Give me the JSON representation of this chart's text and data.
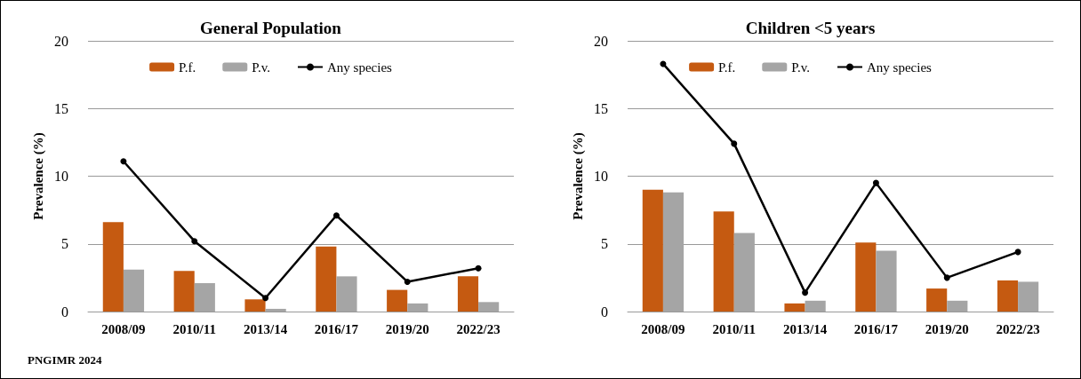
{
  "chart_data": [
    {
      "type": "bar",
      "title": "General Population",
      "ylabel": "Prevalence (%)",
      "categories": [
        "2008/09",
        "2010/11",
        "2013/14",
        "2016/17",
        "2019/20",
        "2022/23"
      ],
      "series": [
        {
          "name": "P.f.",
          "color": "#c55a11",
          "values": [
            6.6,
            3.0,
            0.9,
            4.8,
            1.6,
            2.6
          ]
        },
        {
          "name": "P.v.",
          "color": "#a5a5a5",
          "values": [
            3.1,
            2.1,
            0.2,
            2.6,
            0.6,
            0.7
          ]
        },
        {
          "name": "Any species",
          "type": "line",
          "color": "#000000",
          "values": [
            11.1,
            5.2,
            1.0,
            7.1,
            2.2,
            3.2
          ]
        }
      ],
      "ylim": [
        0,
        20
      ],
      "yticks": [
        0,
        5,
        10,
        15,
        20
      ],
      "grid": "y",
      "legend": "top",
      "marker": "circle",
      "annotations": [
        "PNGIMR 2024"
      ]
    },
    {
      "type": "bar",
      "title": "Children <5 years",
      "ylabel": "Prevalence (%)",
      "categories": [
        "2008/09",
        "2010/11",
        "2013/14",
        "2016/17",
        "2019/20",
        "2022/23"
      ],
      "series": [
        {
          "name": "P.f.",
          "color": "#c55a11",
          "values": [
            9.0,
            7.4,
            0.6,
            5.1,
            1.7,
            2.3
          ]
        },
        {
          "name": "P.v.",
          "color": "#a5a5a5",
          "values": [
            8.8,
            5.8,
            0.8,
            4.5,
            0.8,
            2.2
          ]
        },
        {
          "name": "Any species",
          "type": "line",
          "color": "#000000",
          "values": [
            18.3,
            12.4,
            1.4,
            9.5,
            2.5,
            4.4
          ]
        }
      ],
      "ylim": [
        0,
        20
      ],
      "yticks": [
        0,
        5,
        10,
        15,
        20
      ],
      "grid": "y",
      "legend": "top",
      "marker": "circle"
    }
  ]
}
